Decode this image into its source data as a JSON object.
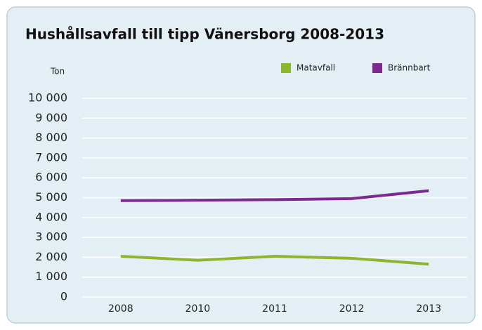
{
  "chart_data": {
    "type": "line",
    "title": "Hushållsavfall till tipp Vänersborg 2008-2013",
    "y_label": "Ton",
    "categories": [
      "2008",
      "2010",
      "2011",
      "2012",
      "2013"
    ],
    "series": [
      {
        "name": "Matavfall",
        "color": "#8db52f",
        "values": [
          2050,
          1850,
          2050,
          1950,
          1650
        ]
      },
      {
        "name": "Brännbart",
        "color": "#7d2a8f",
        "values": [
          4850,
          4870,
          4900,
          4950,
          5350
        ]
      }
    ],
    "ylim": [
      0,
      10000
    ],
    "yticks": [
      0,
      {
        "value": 1000,
        "label": "1 000"
      },
      {
        "value": 2000,
        "label": "2 000"
      },
      {
        "value": 3000,
        "label": "3 000"
      },
      {
        "value": 4000,
        "label": "4 000"
      },
      {
        "value": 5000,
        "label": "5 000"
      },
      {
        "value": 6000,
        "label": "6 000"
      },
      {
        "value": 7000,
        "label": "7 000"
      },
      {
        "value": 8000,
        "label": "8 000"
      },
      {
        "value": 9000,
        "label": "9 000"
      },
      {
        "value": 10000,
        "label": "10 000"
      }
    ],
    "grid": true
  }
}
